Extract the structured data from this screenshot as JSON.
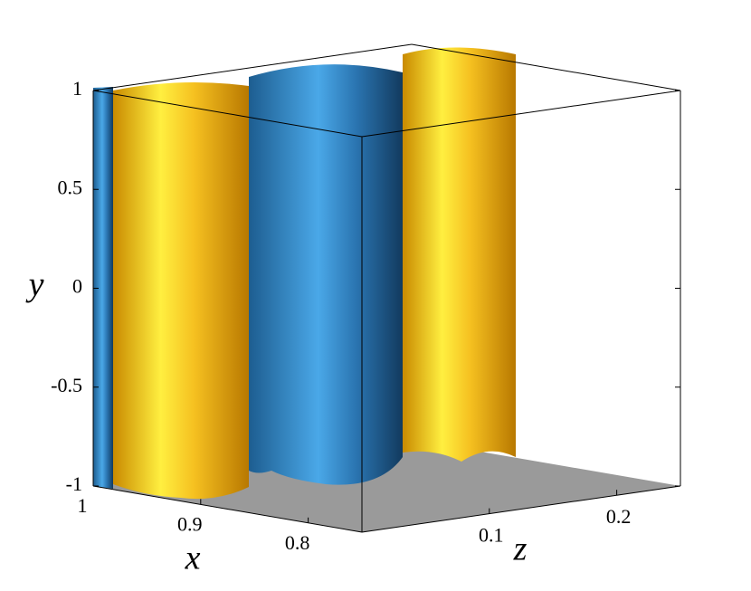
{
  "chart_data": {
    "type": "isosurface3d",
    "x_label": "x",
    "y_label": "y",
    "z_label": "z",
    "xlim": [
      1,
      0.75
    ],
    "ylim": [
      -1,
      1
    ],
    "zlim": [
      0,
      0.25
    ],
    "xticks": [
      1,
      0.9,
      0.8
    ],
    "yticks": [
      1,
      0.5,
      0,
      -0.5,
      -1
    ],
    "zticks": [
      0.1,
      0.2
    ]
  }
}
